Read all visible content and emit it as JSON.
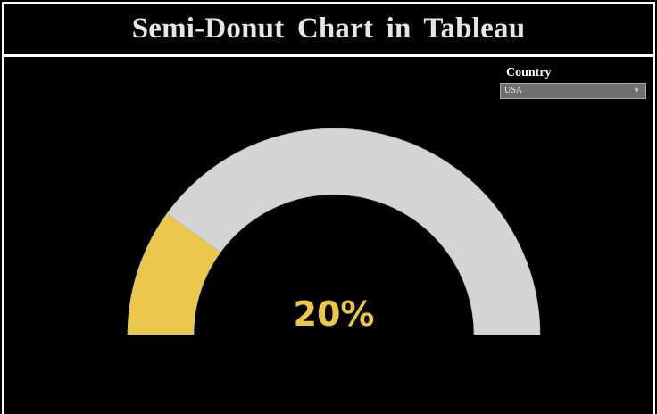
{
  "header": {
    "title": "Semi-Donut Chart in Tableau"
  },
  "filter": {
    "label": "Country",
    "selected": "USA"
  },
  "colors": {
    "background": "#000000",
    "filled": "#ebc84c",
    "remaining": "#d4d4d4",
    "value_text": "#ebc84c",
    "title_text": "#e6e6e6"
  },
  "chart_data": {
    "type": "pie",
    "shape": "semi-donut",
    "value_label": "20%",
    "slices": [
      {
        "label": "",
        "value": 20
      },
      {
        "label": "",
        "value": 80
      }
    ]
  }
}
